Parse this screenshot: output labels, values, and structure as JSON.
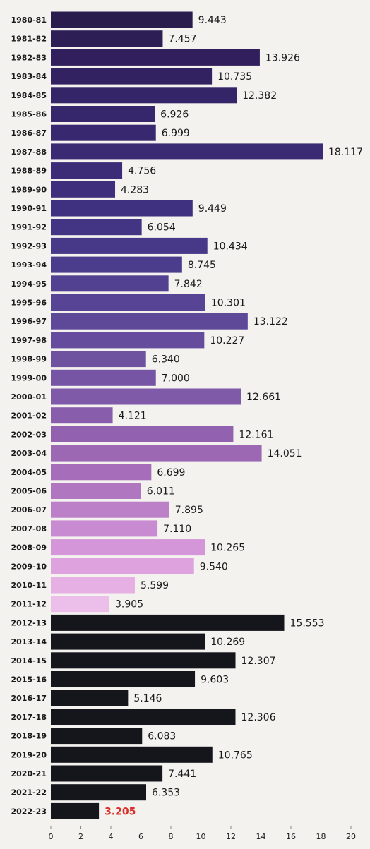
{
  "chart_data": {
    "type": "hbar",
    "categories": [
      "1980-81",
      "1981-82",
      "1982-83",
      "1983-84",
      "1984-85",
      "1985-86",
      "1986-87",
      "1987-88",
      "1988-89",
      "1989-90",
      "1990-91",
      "1991-92",
      "1992-93",
      "1993-94",
      "1994-95",
      "1995-96",
      "1996-97",
      "1997-98",
      "1998-99",
      "1999-00",
      "2000-01",
      "2001-02",
      "2002-03",
      "2003-04",
      "2004-05",
      "2005-06",
      "2006-07",
      "2007-08",
      "2008-09",
      "2009-10",
      "2010-11",
      "2011-12",
      "2012-13",
      "2013-14",
      "2014-15",
      "2015-16",
      "2016-17",
      "2017-18",
      "2018-19",
      "2019-20",
      "2020-21",
      "2021-22",
      "2022-23"
    ],
    "values": [
      9.443,
      7.457,
      13.926,
      10.735,
      12.382,
      6.926,
      6.999,
      18.117,
      4.756,
      4.283,
      9.449,
      6.054,
      10.434,
      8.745,
      7.842,
      10.301,
      13.122,
      10.227,
      6.34,
      7.0,
      12.661,
      4.121,
      12.161,
      14.051,
      6.699,
      6.011,
      7.895,
      7.11,
      10.265,
      9.54,
      5.599,
      3.905,
      15.553,
      10.269,
      12.307,
      9.603,
      5.146,
      12.306,
      6.083,
      10.765,
      7.441,
      6.353,
      3.205
    ],
    "value_labels": [
      "9.443",
      "7.457",
      "13.926",
      "10.735",
      "12.382",
      "6.926",
      "6.999",
      "18.117",
      "4.756",
      "4.283",
      "9.449",
      "6.054",
      "10.434",
      "8.745",
      "7.842",
      "10.301",
      "13.122",
      "10.227",
      "6.340",
      "7.000",
      "12.661",
      "4.121",
      "12.161",
      "14.051",
      "6.699",
      "6.011",
      "7.895",
      "7.110",
      "10.265",
      "9.540",
      "5.599",
      "3.905",
      "15.553",
      "10.269",
      "12.307",
      "9.603",
      "5.146",
      "12.306",
      "6.083",
      "10.765",
      "7.441",
      "6.353",
      "3.205"
    ],
    "colors": [
      "#2a1d4e",
      "#2d1f55",
      "#301f5c",
      "#322262",
      "#342468",
      "#36266c",
      "#382870",
      "#3a2a74",
      "#3c2c78",
      "#3e2e7c",
      "#403080",
      "#443484",
      "#483888",
      "#4c3c8c",
      "#524090",
      "#584494",
      "#5e4898",
      "#664c9c",
      "#6e52a0",
      "#7656a4",
      "#7e5aa8",
      "#885eac",
      "#9262b0",
      "#9c68b4",
      "#a66eba",
      "#b076c0",
      "#bc80c8",
      "#c88ad0",
      "#d496d8",
      "#dea2de",
      "#e6b0e4",
      "#ecbeea",
      "#15151c",
      "#15151c",
      "#15151c",
      "#15151c",
      "#15151c",
      "#15151c",
      "#15151c",
      "#15151c",
      "#15151c",
      "#15151c",
      "#15151c"
    ],
    "highlight": {
      "category": "2022-23",
      "color": "#d9302a"
    },
    "xlim": [
      0,
      20
    ],
    "xticks": [
      0,
      2,
      4,
      6,
      8,
      10,
      12,
      14,
      16,
      18,
      20
    ]
  }
}
